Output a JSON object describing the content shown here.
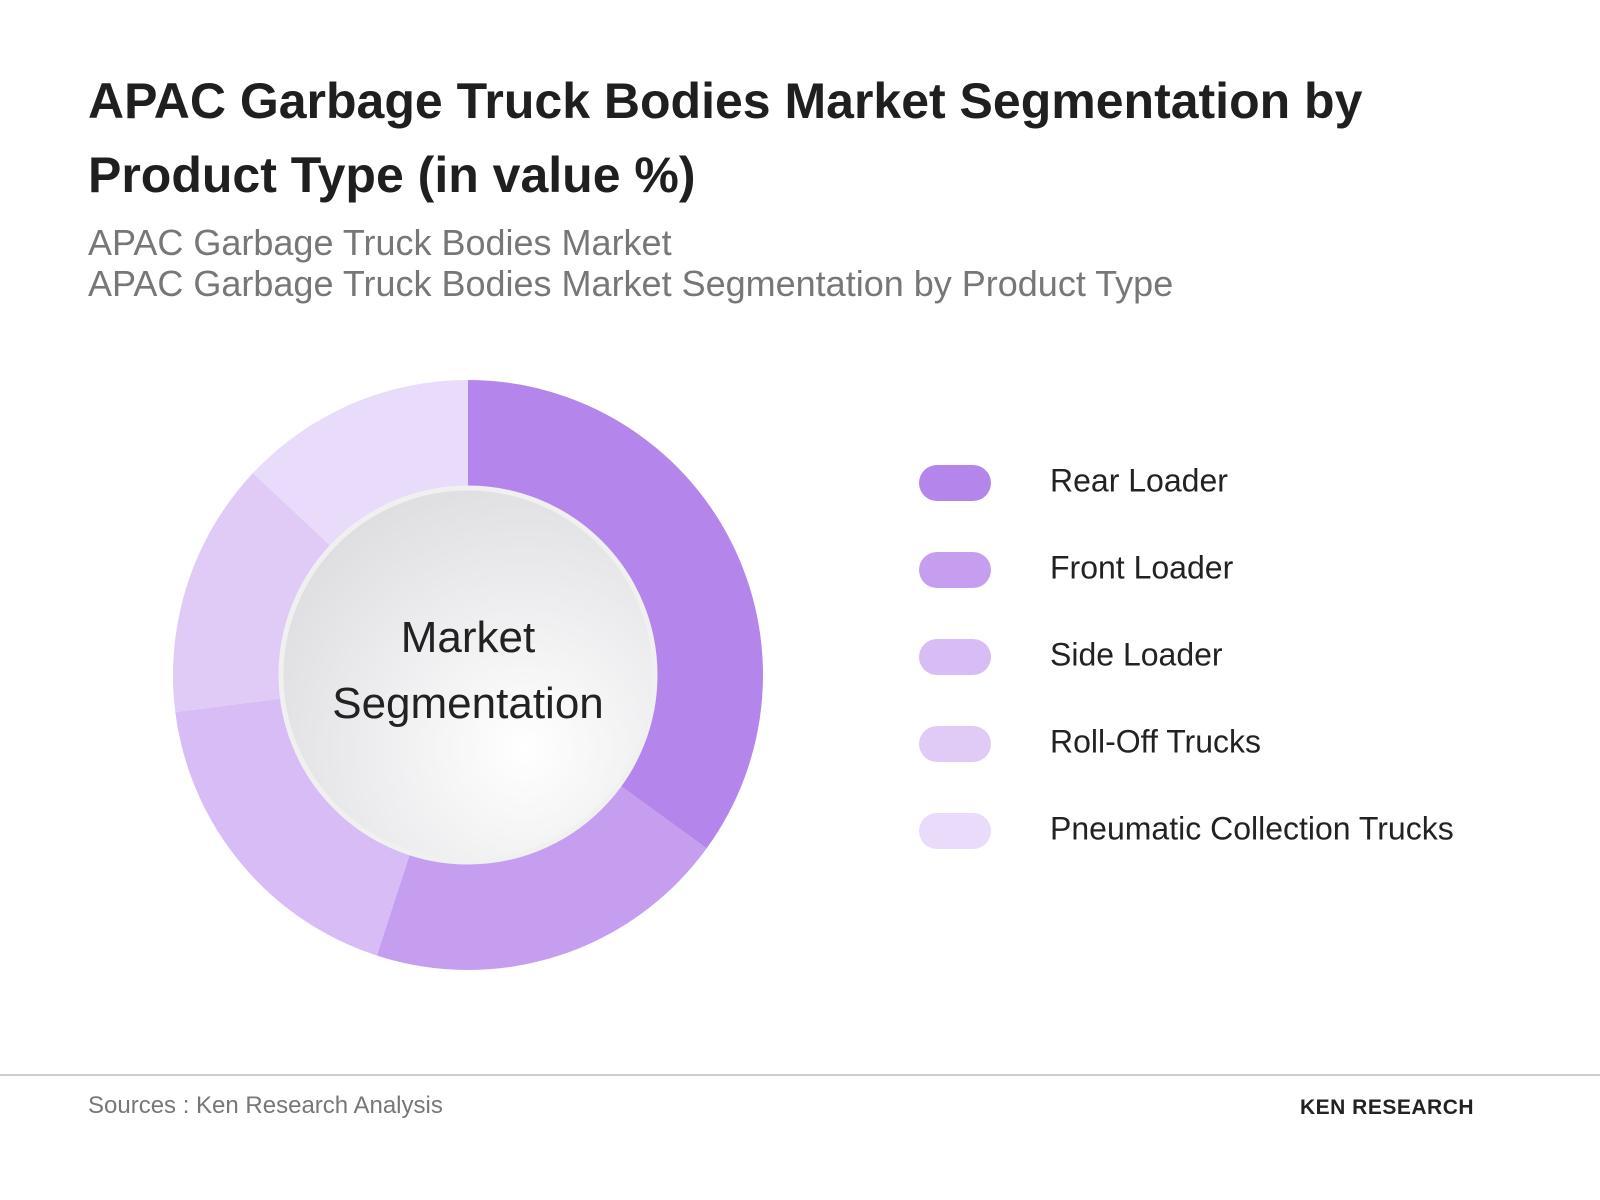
{
  "chart_data": {
    "type": "donut",
    "title": "APAC Garbage Truck Bodies Market Segmentation by Product Type (in value %)",
    "subtitles": [
      "APAC Garbage Truck Bodies Market",
      "APAC Garbage Truck Bodies Market Segmentation by Product Type"
    ],
    "center_label": "Market Segmentation",
    "categories": [
      "Rear Loader",
      "Front Loader",
      "Side Loader",
      "Roll-Off Trucks",
      "Pneumatic Collection Trucks"
    ],
    "values": [
      35,
      20,
      18,
      14,
      13
    ],
    "colors": [
      "#b485ea",
      "#c59ef0",
      "#d7bcf5",
      "#e0cbf7",
      "#e9dbfa"
    ],
    "legend": "right"
  },
  "footer": {
    "source": "Sources : Ken Research Analysis",
    "logo": "KEN RESEARCH"
  }
}
